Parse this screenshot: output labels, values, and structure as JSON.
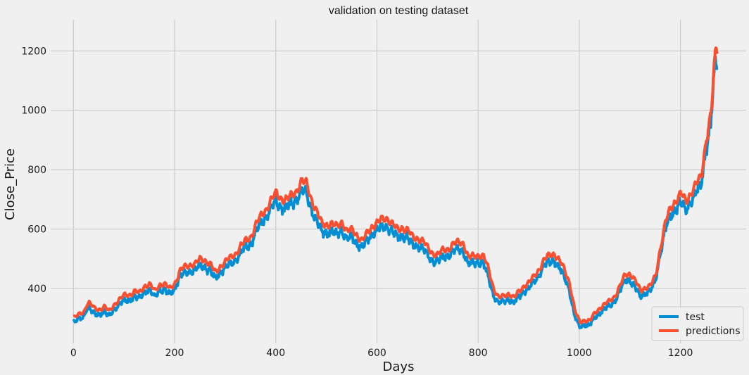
{
  "chart_data": {
    "type": "line",
    "title": "validation on testing dataset",
    "xlabel": "Days",
    "ylabel": "Close_Price",
    "xlim": [
      -45,
      1330
    ],
    "ylim": [
      215,
      1305
    ],
    "xticks": [
      0,
      200,
      400,
      600,
      800,
      1000,
      1200
    ],
    "yticks": [
      400,
      600,
      800,
      1000,
      1200
    ],
    "grid": true,
    "legend_position": "lower-right",
    "colors": {
      "background": "#f0f0f0",
      "grid": "#cbcbcb",
      "test": "#008fd5",
      "predictions": "#fc4f30"
    },
    "anchors": [
      [
        0,
        285
      ],
      [
        10,
        295
      ],
      [
        20,
        305
      ],
      [
        25,
        330
      ],
      [
        30,
        335
      ],
      [
        40,
        315
      ],
      [
        50,
        312
      ],
      [
        60,
        322
      ],
      [
        70,
        305
      ],
      [
        80,
        330
      ],
      [
        90,
        345
      ],
      [
        100,
        358
      ],
      [
        110,
        360
      ],
      [
        120,
        372
      ],
      [
        130,
        365
      ],
      [
        140,
        390
      ],
      [
        150,
        395
      ],
      [
        160,
        370
      ],
      [
        170,
        395
      ],
      [
        180,
        395
      ],
      [
        190,
        378
      ],
      [
        200,
        400
      ],
      [
        210,
        440
      ],
      [
        220,
        450
      ],
      [
        230,
        458
      ],
      [
        240,
        462
      ],
      [
        250,
        475
      ],
      [
        260,
        472
      ],
      [
        270,
        460
      ],
      [
        280,
        430
      ],
      [
        290,
        455
      ],
      [
        300,
        470
      ],
      [
        310,
        480
      ],
      [
        320,
        495
      ],
      [
        330,
        520
      ],
      [
        340,
        535
      ],
      [
        350,
        550
      ],
      [
        360,
        590
      ],
      [
        370,
        615
      ],
      [
        380,
        640
      ],
      [
        390,
        670
      ],
      [
        400,
        688
      ],
      [
        410,
        675
      ],
      [
        420,
        670
      ],
      [
        430,
        680
      ],
      [
        440,
        700
      ],
      [
        450,
        730
      ],
      [
        460,
        720
      ],
      [
        470,
        670
      ],
      [
        480,
        630
      ],
      [
        490,
        590
      ],
      [
        500,
        590
      ],
      [
        510,
        590
      ],
      [
        520,
        580
      ],
      [
        530,
        600
      ],
      [
        540,
        565
      ],
      [
        550,
        570
      ],
      [
        560,
        555
      ],
      [
        570,
        535
      ],
      [
        580,
        560
      ],
      [
        590,
        585
      ],
      [
        600,
        595
      ],
      [
        610,
        605
      ],
      [
        620,
        610
      ],
      [
        630,
        590
      ],
      [
        640,
        570
      ],
      [
        650,
        580
      ],
      [
        660,
        570
      ],
      [
        670,
        545
      ],
      [
        680,
        545
      ],
      [
        690,
        535
      ],
      [
        700,
        510
      ],
      [
        710,
        495
      ],
      [
        720,
        490
      ],
      [
        730,
        505
      ],
      [
        740,
        510
      ],
      [
        750,
        525
      ],
      [
        760,
        530
      ],
      [
        770,
        530
      ],
      [
        780,
        480
      ],
      [
        790,
        485
      ],
      [
        800,
        490
      ],
      [
        810,
        485
      ],
      [
        820,
        440
      ],
      [
        830,
        380
      ],
      [
        840,
        350
      ],
      [
        850,
        355
      ],
      [
        860,
        365
      ],
      [
        870,
        350
      ],
      [
        880,
        370
      ],
      [
        890,
        390
      ],
      [
        900,
        400
      ],
      [
        910,
        420
      ],
      [
        920,
        445
      ],
      [
        930,
        475
      ],
      [
        940,
        488
      ],
      [
        950,
        495
      ],
      [
        960,
        470
      ],
      [
        970,
        440
      ],
      [
        980,
        400
      ],
      [
        990,
        310
      ],
      [
        1000,
        270
      ],
      [
        1010,
        278
      ],
      [
        1020,
        275
      ],
      [
        1030,
        300
      ],
      [
        1040,
        318
      ],
      [
        1050,
        330
      ],
      [
        1060,
        340
      ],
      [
        1070,
        358
      ],
      [
        1080,
        390
      ],
      [
        1090,
        425
      ],
      [
        1100,
        430
      ],
      [
        1110,
        405
      ],
      [
        1120,
        372
      ],
      [
        1130,
        385
      ],
      [
        1140,
        390
      ],
      [
        1150,
        420
      ],
      [
        1160,
        520
      ],
      [
        1170,
        600
      ],
      [
        1180,
        640
      ],
      [
        1190,
        670
      ],
      [
        1200,
        690
      ],
      [
        1210,
        660
      ],
      [
        1220,
        695
      ],
      [
        1230,
        720
      ],
      [
        1240,
        740
      ],
      [
        1250,
        870
      ],
      [
        1260,
        950
      ],
      [
        1265,
        1080
      ],
      [
        1270,
        1170
      ],
      [
        1273,
        1150
      ]
    ],
    "series": [
      {
        "name": "test"
      },
      {
        "name": "predictions"
      }
    ]
  }
}
